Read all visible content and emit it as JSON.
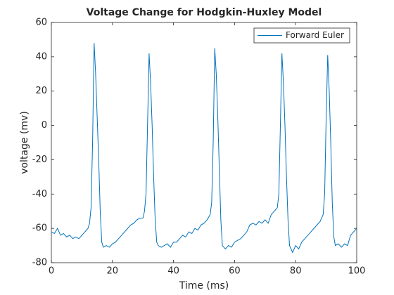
{
  "chart_data": {
    "type": "line",
    "title": "Voltage Change for Hodgkin-Huxley Model",
    "xlabel": "Time (ms)",
    "ylabel": "voltage (mv)",
    "x": [
      0,
      1,
      2,
      3,
      4,
      5,
      6,
      7,
      8,
      9,
      10,
      11,
      12,
      12.5,
      13,
      13.5,
      14,
      14.5,
      15,
      15.5,
      16,
      16.5,
      17,
      18,
      19,
      20,
      21,
      22,
      23,
      24,
      25,
      26,
      27,
      28,
      29,
      30,
      30.5,
      31,
      31.5,
      32,
      32.5,
      33,
      33.5,
      34,
      34.5,
      35,
      36,
      37,
      38,
      39,
      40,
      41,
      42,
      43,
      44,
      45,
      46,
      47,
      48,
      49,
      50,
      51,
      52,
      52.5,
      53,
      53.5,
      54,
      54.5,
      55,
      55.5,
      56,
      57,
      58,
      59,
      60,
      61,
      62,
      63,
      64,
      65,
      66,
      67,
      68,
      69,
      70,
      71,
      72,
      73,
      74,
      74.5,
      75,
      75.5,
      76,
      76.5,
      77,
      77.5,
      78,
      79,
      80,
      81,
      82,
      83,
      84,
      85,
      86,
      87,
      88,
      89,
      89.5,
      90,
      90.5,
      91,
      91.5,
      92,
      92.5,
      93,
      94,
      95,
      96,
      97,
      98,
      99,
      100
    ],
    "series": [
      {
        "name": "Forward Euler",
        "color": "#0072bd",
        "values": [
          -62,
          -63,
          -60,
          -64,
          -63,
          -65,
          -64,
          -66,
          -65,
          -66,
          -64,
          -62,
          -60,
          -57,
          -48,
          -10,
          48,
          30,
          5,
          -20,
          -50,
          -68,
          -71,
          -70,
          -71,
          -69,
          -68,
          -66,
          -64,
          -62,
          -60,
          -58,
          -57,
          -55,
          -54,
          -54,
          -50,
          -40,
          0,
          42,
          25,
          0,
          -30,
          -55,
          -68,
          -70,
          -71,
          -70,
          -69,
          -71,
          -68,
          -68,
          -66,
          -64,
          -65,
          -62,
          -63,
          -60,
          -61,
          -58,
          -57,
          -55,
          -52,
          -45,
          -10,
          45,
          30,
          5,
          -25,
          -55,
          -70,
          -72,
          -70,
          -71,
          -68,
          -67,
          -66,
          -64,
          -62,
          -58,
          -57,
          -58,
          -56,
          -57,
          -55,
          -57,
          -52,
          -50,
          -48,
          -40,
          0,
          42,
          25,
          0,
          -30,
          -55,
          -70,
          -74,
          -70,
          -72,
          -68,
          -66,
          -64,
          -62,
          -60,
          -58,
          -56,
          -52,
          -40,
          5,
          41,
          20,
          -10,
          -45,
          -65,
          -70,
          -69,
          -71,
          -69,
          -70,
          -64,
          -62,
          -60
        ]
      }
    ],
    "xlim": [
      0,
      100
    ],
    "xticks": [
      0,
      20,
      40,
      60,
      80,
      100
    ],
    "ylim": [
      -80,
      60
    ],
    "yticks": [
      -80,
      -60,
      -40,
      -20,
      0,
      20,
      40,
      60
    ],
    "legend": "upper right"
  }
}
